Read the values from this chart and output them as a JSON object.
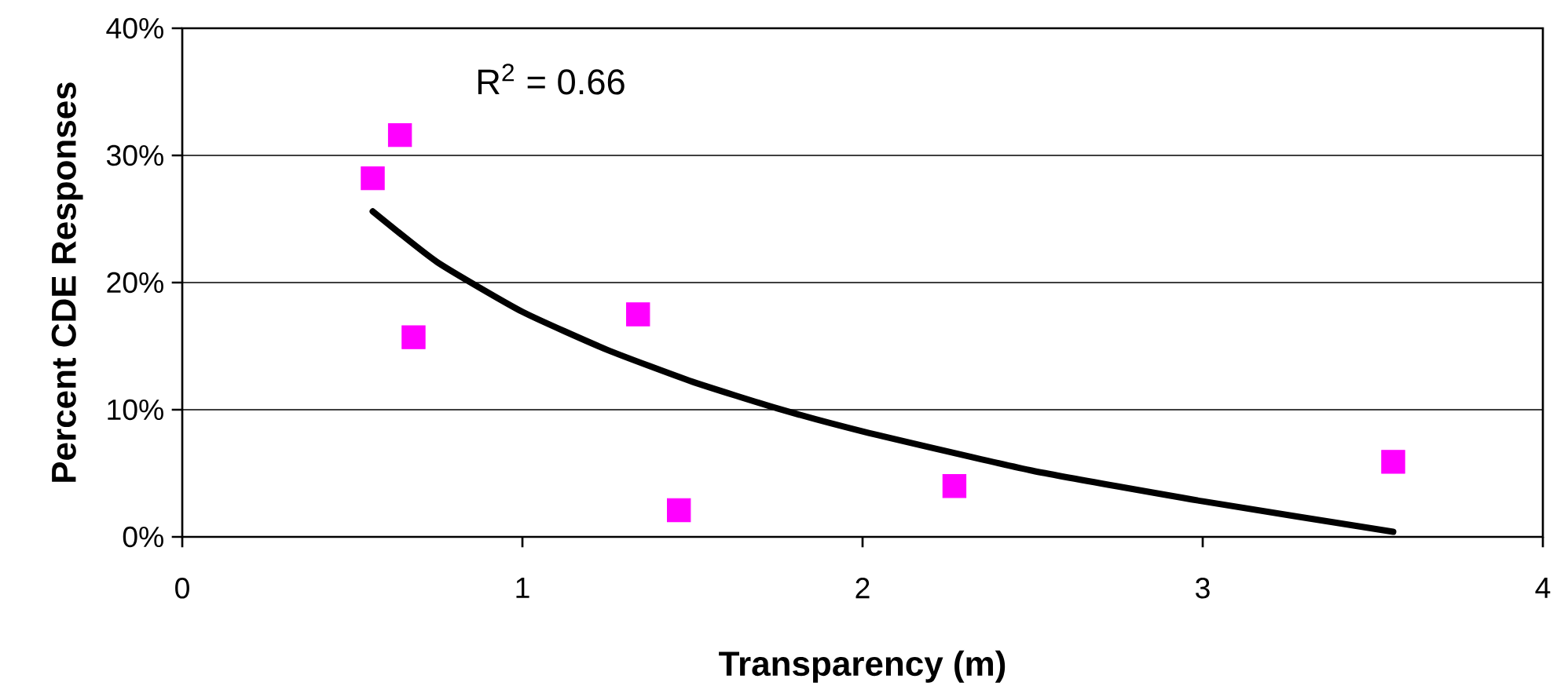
{
  "chart_data": {
    "type": "scatter",
    "xlabel": "Transparency (m)",
    "ylabel": "Percent CDE Responses",
    "annotations": [
      "R$^{2}$ = 0.66"
    ],
    "xlim": [
      0,
      4
    ],
    "xticks": [
      0,
      1,
      2,
      3,
      4
    ],
    "ylim": [
      0,
      40
    ],
    "yticks": [
      {
        "value": 0,
        "label": "0%"
      },
      {
        "value": 10,
        "label": "10%"
      },
      {
        "value": 20,
        "label": "20%"
      },
      {
        "value": 30,
        "label": "30%"
      },
      {
        "value": 40,
        "label": "40%"
      }
    ],
    "grid": "y",
    "marker": "square",
    "series": [
      {
        "color": "#ff00ff",
        "x": [
          0.56,
          0.64,
          0.68,
          1.34,
          1.46,
          2.27,
          3.56
        ],
        "values": [
          28.2,
          31.6,
          15.7,
          17.5,
          2.1,
          4.0,
          5.9
        ]
      },
      {
        "type": "line",
        "color": "#000000",
        "marker": "none",
        "line_style": "solid",
        "x": [
          0.56,
          0.75,
          1,
          1.25,
          1.5,
          1.75,
          2,
          2.5,
          3,
          3.56
        ],
        "values": [
          25.6,
          21.6,
          17.7,
          14.7,
          12.2,
          10.1,
          8.3,
          5.2,
          2.8,
          0.4
        ]
      }
    ]
  }
}
